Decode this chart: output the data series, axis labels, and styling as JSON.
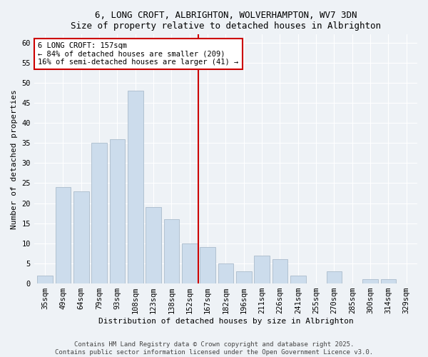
{
  "title1": "6, LONG CROFT, ALBRIGHTON, WOLVERHAMPTON, WV7 3DN",
  "title2": "Size of property relative to detached houses in Albrighton",
  "xlabel": "Distribution of detached houses by size in Albrighton",
  "ylabel": "Number of detached properties",
  "categories": [
    "35sqm",
    "49sqm",
    "64sqm",
    "79sqm",
    "93sqm",
    "108sqm",
    "123sqm",
    "138sqm",
    "152sqm",
    "167sqm",
    "182sqm",
    "196sqm",
    "211sqm",
    "226sqm",
    "241sqm",
    "255sqm",
    "270sqm",
    "285sqm",
    "300sqm",
    "314sqm",
    "329sqm"
  ],
  "values": [
    2,
    24,
    23,
    35,
    36,
    48,
    19,
    16,
    10,
    9,
    5,
    3,
    7,
    6,
    2,
    0,
    3,
    0,
    1,
    1,
    0
  ],
  "bar_color": "#ccdcec",
  "bar_edge_color": "#aabbcc",
  "vline_x_idx": 8,
  "vline_color": "#cc0000",
  "annotation_line1": "6 LONG CROFT: 157sqm",
  "annotation_line2": "← 84% of detached houses are smaller (209)",
  "annotation_line3": "16% of semi-detached houses are larger (41) →",
  "annotation_box_color": "#ffffff",
  "annotation_edge_color": "#cc0000",
  "ylim": [
    0,
    62
  ],
  "yticks": [
    0,
    5,
    10,
    15,
    20,
    25,
    30,
    35,
    40,
    45,
    50,
    55,
    60
  ],
  "footer1": "Contains HM Land Registry data © Crown copyright and database right 2025.",
  "footer2": "Contains public sector information licensed under the Open Government Licence v3.0.",
  "bg_color": "#eef2f6",
  "plot_bg_color": "#eef2f6",
  "grid_color": "#ffffff",
  "title_fontsize": 9,
  "axis_label_fontsize": 8,
  "tick_fontsize": 7.5,
  "annotation_fontsize": 7.5,
  "footer_fontsize": 6.5
}
